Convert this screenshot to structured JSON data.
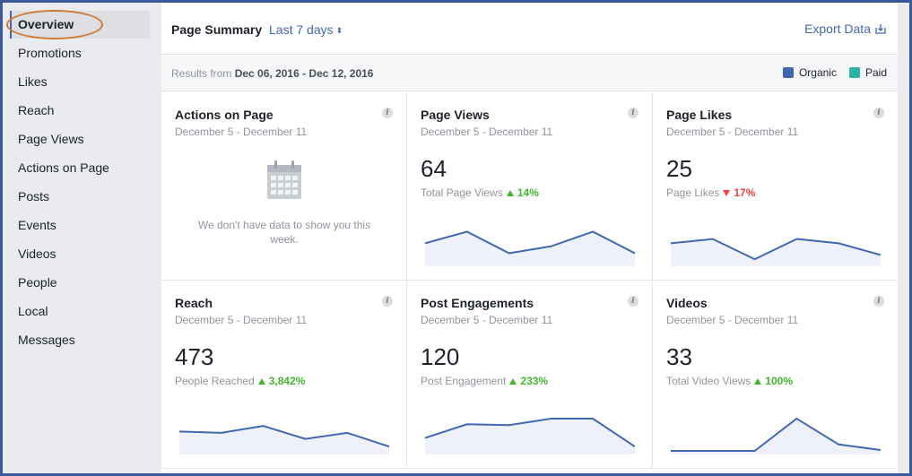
{
  "sidebar": {
    "items": [
      {
        "label": "Overview"
      },
      {
        "label": "Promotions"
      },
      {
        "label": "Likes"
      },
      {
        "label": "Reach"
      },
      {
        "label": "Page Views"
      },
      {
        "label": "Actions on Page"
      },
      {
        "label": "Posts"
      },
      {
        "label": "Events"
      },
      {
        "label": "Videos"
      },
      {
        "label": "People"
      },
      {
        "label": "Local"
      },
      {
        "label": "Messages"
      }
    ]
  },
  "header": {
    "title": "Page Summary",
    "range": "Last 7 days",
    "range_arrows": "▲▼",
    "export_label": "Export Data"
  },
  "subheader": {
    "results_prefix": "Results from",
    "results_range": "Dec 06, 2016 - Dec 12, 2016",
    "legend": [
      {
        "label": "Organic",
        "color": "#4267b2"
      },
      {
        "label": "Paid",
        "color": "#2bb3a3"
      }
    ]
  },
  "cards": [
    {
      "title": "Actions on Page",
      "dates": "December 5 - December 11",
      "info": "i",
      "empty_message": "We don't have data to show you this week."
    },
    {
      "title": "Page Views",
      "dates": "December 5 - December 11",
      "info": "i",
      "value": "64",
      "sub_label": "Total Page Views",
      "change": "14%",
      "direction": "up",
      "spark": [
        0.45,
        0.72,
        0.22,
        0.38,
        0.72,
        0.22
      ]
    },
    {
      "title": "Page Likes",
      "dates": "December 5 - December 11",
      "info": "i",
      "value": "25",
      "sub_label": "Page Likes",
      "change": "17%",
      "direction": "down",
      "spark": [
        0.45,
        0.55,
        0.08,
        0.55,
        0.45,
        0.18
      ]
    },
    {
      "title": "Reach",
      "dates": "December 5 - December 11",
      "info": "i",
      "value": "473",
      "sub_label": "People Reached",
      "change": "3,842%",
      "direction": "up",
      "spark": [
        0.45,
        0.42,
        0.58,
        0.28,
        0.42,
        0.1
      ]
    },
    {
      "title": "Post Engagements",
      "dates": "December 5 - December 11",
      "info": "i",
      "value": "120",
      "sub_label": "Post Engagement",
      "change": "233%",
      "direction": "up",
      "spark": [
        0.3,
        0.62,
        0.6,
        0.75,
        0.75,
        0.1
      ]
    },
    {
      "title": "Videos",
      "dates": "December 5 - December 11",
      "info": "i",
      "value": "33",
      "sub_label": "Total Video Views",
      "change": "100%",
      "direction": "up",
      "spark": [
        0.0,
        0.0,
        0.0,
        0.75,
        0.15,
        0.02
      ]
    }
  ]
}
